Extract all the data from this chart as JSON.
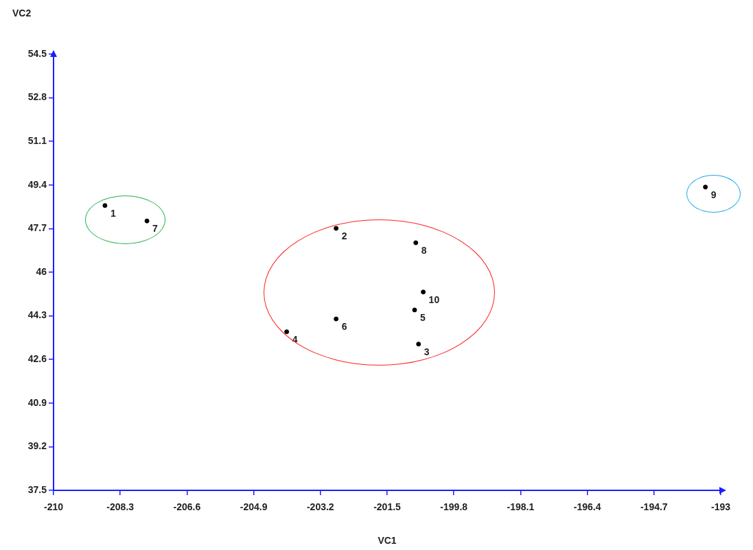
{
  "chart_data": {
    "type": "scatter",
    "xlabel": "VC1",
    "ylabel": "VC2",
    "series": [
      {
        "color": "#000000",
        "x": [
          -208.69,
          -202.8,
          -200.7,
          -204.06,
          -200.8,
          -202.8,
          -207.62,
          -200.77,
          -193.39,
          -200.58
        ],
        "values": [
          48.6,
          47.71,
          43.2,
          43.68,
          44.53,
          44.18,
          48.0,
          47.15,
          49.32,
          45.23
        ]
      }
    ],
    "annotations": [
      {
        "text": "1",
        "x": -208.69,
        "y": 48.6
      },
      {
        "text": "2",
        "x": -202.8,
        "y": 47.71
      },
      {
        "text": "3",
        "x": -200.7,
        "y": 43.2
      },
      {
        "text": "4",
        "x": -204.06,
        "y": 43.68
      },
      {
        "text": "5",
        "x": -200.8,
        "y": 44.53
      },
      {
        "text": "6",
        "x": -202.8,
        "y": 44.18
      },
      {
        "text": "7",
        "x": -207.62,
        "y": 48.0
      },
      {
        "text": "8",
        "x": -200.77,
        "y": 47.15
      },
      {
        "text": "9",
        "x": -193.39,
        "y": 49.32
      },
      {
        "text": "10",
        "x": -200.58,
        "y": 45.23
      }
    ],
    "xlim": [
      -210,
      -193
    ],
    "xticks": [
      -210,
      -208.3,
      -206.6,
      -204.9,
      -203.2,
      -201.5,
      -199.8,
      -198.1,
      -196.4,
      -194.7,
      -193
    ],
    "ylim": [
      37.5,
      54.5
    ],
    "yticks": [
      37.5,
      39.2,
      40.9,
      42.6,
      44.3,
      46,
      47.7,
      49.4,
      51.1,
      52.8,
      54.5
    ],
    "grid": false,
    "legend": false,
    "marker": "circle"
  }
}
